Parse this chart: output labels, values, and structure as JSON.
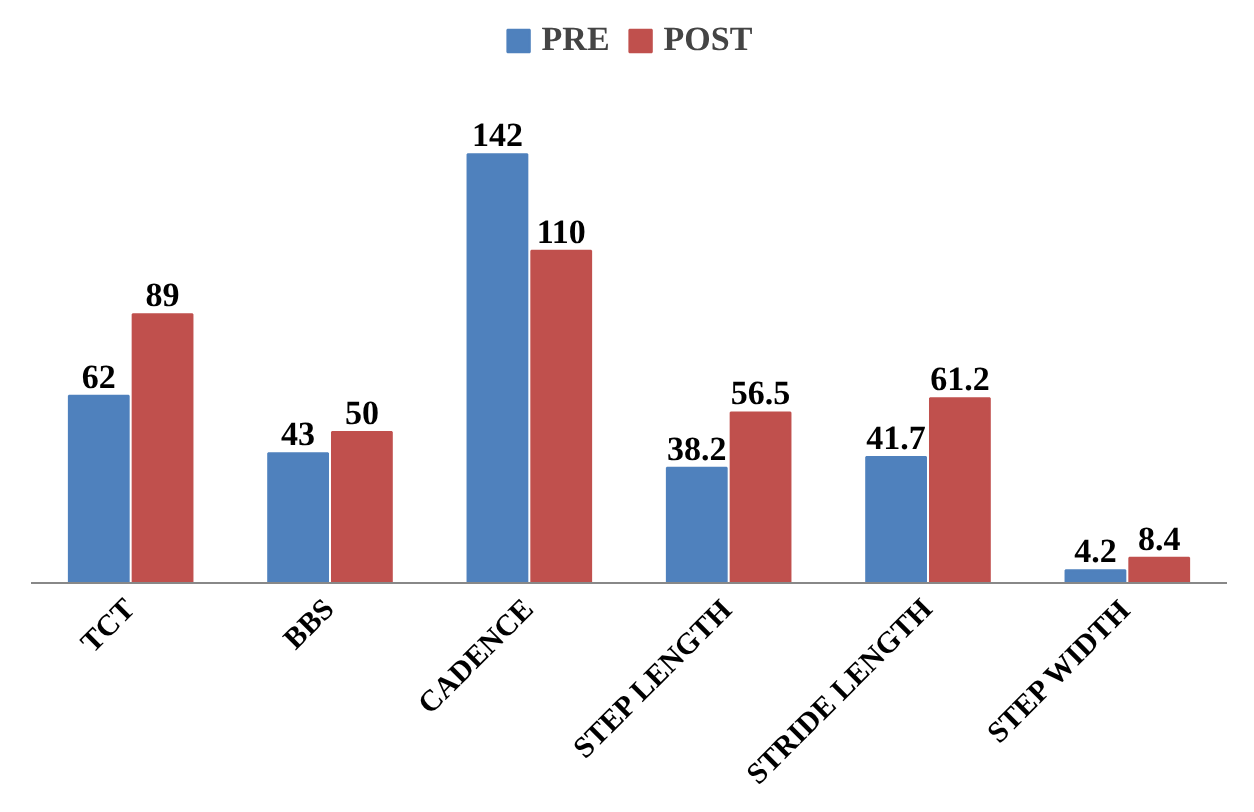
{
  "chart_data": {
    "type": "bar",
    "categories": [
      "TCT",
      "BBS",
      "CADENCE",
      "STEP LENGTH",
      "STRIDE LENGTH",
      "STEP WIDTH"
    ],
    "series": [
      {
        "name": "PRE",
        "color": "#4f81bd",
        "values": [
          62,
          43,
          142,
          38.2,
          41.7,
          4.2
        ]
      },
      {
        "name": "POST",
        "color": "#c0504d",
        "values": [
          89,
          50,
          110,
          56.5,
          61.2,
          8.4
        ]
      }
    ],
    "data_labels": true,
    "legend": "top",
    "grid": false
  }
}
